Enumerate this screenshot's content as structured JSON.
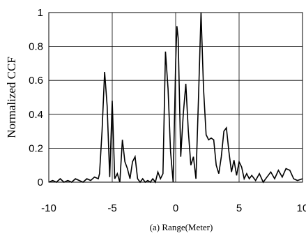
{
  "chart_data": {
    "type": "line",
    "ylabel": "Normalized CCF",
    "xlabel": "(a)  Range(Meter)",
    "xlim": [
      -10,
      10
    ],
    "ylim": [
      0,
      1
    ],
    "xticks": [
      -10,
      -5,
      0,
      5,
      10
    ],
    "yticks": [
      0,
      0.2,
      0.4,
      0.6,
      0.8,
      1
    ],
    "ytick_labels": [
      "0",
      "0.2",
      "0.4",
      "0.6",
      "0.8",
      "1"
    ],
    "grid": true,
    "series": [
      {
        "color": "#000000",
        "x": [
          -10,
          -9.7,
          -9.4,
          -9.1,
          -8.8,
          -8.5,
          -8.2,
          -7.9,
          -7.6,
          -7.3,
          -7.0,
          -6.7,
          -6.4,
          -6.1,
          -6.0,
          -5.8,
          -5.6,
          -5.4,
          -5.2,
          -5.0,
          -4.8,
          -4.6,
          -4.4,
          -4.2,
          -4.0,
          -3.8,
          -3.6,
          -3.4,
          -3.2,
          -3.0,
          -2.8,
          -2.6,
          -2.4,
          -2.2,
          -2.0,
          -1.8,
          -1.6,
          -1.4,
          -1.2,
          -1.0,
          -0.8,
          -0.6,
          -0.4,
          -0.2,
          0.0,
          0.1,
          0.2,
          0.4,
          0.6,
          0.8,
          1.0,
          1.2,
          1.4,
          1.6,
          1.8,
          2.0,
          2.2,
          2.4,
          2.6,
          2.8,
          3.0,
          3.2,
          3.4,
          3.6,
          3.8,
          4.0,
          4.2,
          4.4,
          4.6,
          4.8,
          5.0,
          5.2,
          5.4,
          5.6,
          5.8,
          6.0,
          6.3,
          6.6,
          6.9,
          7.2,
          7.5,
          7.8,
          8.1,
          8.4,
          8.7,
          9.0,
          9.3,
          9.6,
          10.0
        ],
        "values": [
          0.0,
          0.01,
          0.0,
          0.02,
          0.0,
          0.01,
          0.0,
          0.02,
          0.01,
          0.0,
          0.02,
          0.01,
          0.03,
          0.02,
          0.05,
          0.3,
          0.65,
          0.45,
          0.03,
          0.48,
          0.02,
          0.05,
          0.0,
          0.25,
          0.12,
          0.08,
          0.02,
          0.12,
          0.15,
          0.02,
          0.0,
          0.02,
          0.0,
          0.01,
          0.0,
          0.02,
          0.0,
          0.06,
          0.02,
          0.05,
          0.77,
          0.55,
          0.18,
          0.0,
          0.7,
          0.92,
          0.85,
          0.15,
          0.4,
          0.58,
          0.3,
          0.1,
          0.15,
          0.02,
          0.5,
          1.0,
          0.55,
          0.28,
          0.25,
          0.26,
          0.25,
          0.1,
          0.05,
          0.15,
          0.3,
          0.32,
          0.18,
          0.06,
          0.13,
          0.04,
          0.12,
          0.09,
          0.02,
          0.05,
          0.02,
          0.04,
          0.01,
          0.05,
          0.0,
          0.03,
          0.06,
          0.02,
          0.07,
          0.03,
          0.08,
          0.07,
          0.02,
          0.01,
          0.02
        ]
      }
    ]
  }
}
